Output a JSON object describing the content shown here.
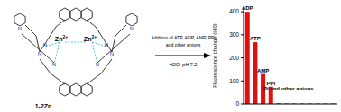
{
  "chart_data": {
    "type": "bar",
    "title": null,
    "y_label": "Fluorescence change (I-I0)",
    "categories": [
      null,
      null,
      null,
      null,
      null,
      null,
      null,
      null,
      null,
      null,
      null,
      null
    ],
    "values": [
      400,
      268,
      130,
      75,
      3,
      2,
      2,
      2,
      2,
      2,
      2,
      2
    ],
    "color": "#e01010",
    "ylim": [
      0,
      420
    ],
    "yticks": [
      0,
      100,
      200,
      300,
      400
    ],
    "grid": false,
    "tick_labels": "y",
    "annotations": [
      {
        "text": "ADP",
        "index": 0
      },
      {
        "text": "ATP",
        "index": 1
      },
      {
        "text": "AMP",
        "index": 2
      },
      {
        "text": "PPi",
        "index": 3
      },
      {
        "text": "Pi and other anions",
        "index": 7
      }
    ]
  },
  "diagram": {
    "compound": "1-2Zn",
    "metal_labels": [
      "Zn2+",
      "Zn2+"
    ],
    "atoms": [
      "N",
      "N",
      "H",
      "N",
      "N",
      "H",
      "N",
      "N"
    ],
    "arrow_above": [
      "Addition of ATP, ADP, AMP, PPi",
      "and other anions"
    ],
    "arrow_below": "H2O, pH 7.2"
  }
}
